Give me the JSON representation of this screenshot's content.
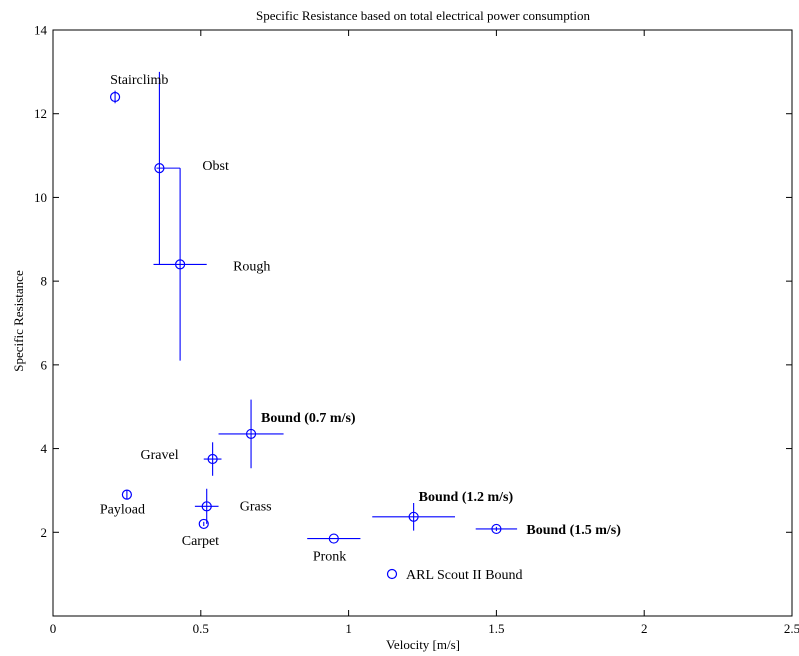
{
  "chart_data": {
    "type": "scatter",
    "title": "Specific Resistance based on total electrical power consumption",
    "xlabel": "Velocity [m/s]",
    "ylabel": "Specific Resistance",
    "xlim": [
      0,
      2.5
    ],
    "ylim": [
      0,
      14
    ],
    "xticks": [
      0,
      0.5,
      1,
      1.5,
      2,
      2.5
    ],
    "xtick_labels": [
      "0",
      "0.5",
      "1",
      "1.5",
      "2",
      "2.5"
    ],
    "yticks": [
      2,
      4,
      6,
      8,
      10,
      12,
      14
    ],
    "ytick_labels": [
      "2",
      "4",
      "6",
      "8",
      "10",
      "12",
      "14"
    ],
    "grid": false,
    "legend": {
      "entries": [
        "ARL Scout II Bound"
      ],
      "placement": "bottom-center"
    },
    "color": "#0000ff",
    "marker": "circle-with-crossbars",
    "points": [
      {
        "label": "Stairclimb",
        "bold": false,
        "x": 0.21,
        "y": 12.4,
        "xerr": [
          0,
          0
        ],
        "yerr": [
          0.15,
          0.15
        ]
      },
      {
        "label": "Obst",
        "bold": false,
        "x": 0.36,
        "y": 10.7,
        "xerr": [
          0.01,
          0.07
        ],
        "yerr": [
          2.3,
          2.3
        ]
      },
      {
        "label": "Rough",
        "bold": false,
        "x": 0.43,
        "y": 8.4,
        "xerr": [
          0.09,
          0.09
        ],
        "yerr": [
          2.3,
          2.3
        ]
      },
      {
        "label": "Bound (0.7 m/s)",
        "bold": true,
        "x": 0.67,
        "y": 4.35,
        "xerr": [
          0.11,
          0.11
        ],
        "yerr": [
          0.82,
          0.82
        ]
      },
      {
        "label": "Gravel",
        "bold": false,
        "x": 0.54,
        "y": 3.75,
        "xerr": [
          0.03,
          0.03
        ],
        "yerr": [
          0.4,
          0.4
        ]
      },
      {
        "label": "Payload",
        "bold": false,
        "x": 0.25,
        "y": 2.9,
        "xerr": [
          0,
          0
        ],
        "yerr": [
          0.1,
          0.1
        ]
      },
      {
        "label": "Grass",
        "bold": false,
        "x": 0.52,
        "y": 2.62,
        "xerr": [
          0.04,
          0.04
        ],
        "yerr": [
          0.42,
          0.42
        ]
      },
      {
        "label": "Carpet",
        "bold": false,
        "x": 0.51,
        "y": 2.2,
        "xerr": [
          0,
          0
        ],
        "yerr": [
          0.05,
          0.05
        ]
      },
      {
        "label": "Pronk",
        "bold": false,
        "x": 0.95,
        "y": 1.85,
        "xerr": [
          0.09,
          0.09
        ],
        "yerr": [
          0,
          0
        ]
      },
      {
        "label": "Bound (1.2 m/s)",
        "bold": true,
        "x": 1.22,
        "y": 2.37,
        "xerr": [
          0.14,
          0.14
        ],
        "yerr": [
          0.33,
          0.33
        ]
      },
      {
        "label": "Bound (1.5 m/s)",
        "bold": true,
        "x": 1.5,
        "y": 2.08,
        "xerr": [
          0.07,
          0.07
        ],
        "yerr": [
          0.05,
          0.05
        ]
      }
    ]
  }
}
